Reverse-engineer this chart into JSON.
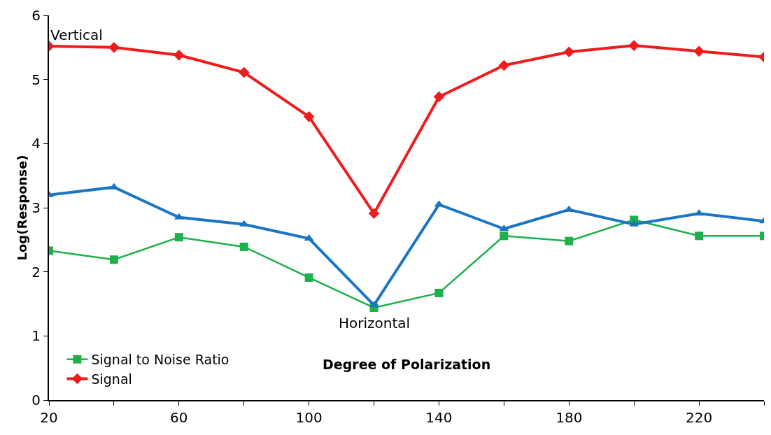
{
  "chart_data": {
    "type": "line",
    "xlabel": "Degree of Polarization",
    "ylabel": "Log(Response)",
    "x": [
      20,
      40,
      60,
      80,
      100,
      120,
      140,
      160,
      180,
      200,
      220,
      240
    ],
    "xlim": [
      20,
      240
    ],
    "xticks": [
      20,
      {
        "value": 40,
        "label": null
      },
      60,
      {
        "value": 80,
        "label": null
      },
      100,
      {
        "value": 120,
        "label": null
      },
      140,
      {
        "value": 160,
        "label": null
      },
      180,
      {
        "value": 200,
        "label": null
      },
      220,
      {
        "value": 240,
        "label": null
      }
    ],
    "ylim": [
      0,
      6
    ],
    "yticks": [
      0,
      1,
      2,
      3,
      4,
      5,
      6
    ],
    "legend": "bottom left",
    "series": [
      {
        "name": "Signal to Noise Ratio",
        "color": "#1db04b",
        "marker": "square",
        "values": [
          2.33,
          2.19,
          2.54,
          2.39,
          1.91,
          1.44,
          1.67,
          2.56,
          2.48,
          2.81,
          2.56,
          2.56
        ]
      },
      {
        "name": "Signal",
        "color": "#ee1c1c",
        "marker": "diamond",
        "values": [
          5.52,
          5.5,
          5.38,
          5.11,
          4.42,
          2.91,
          4.73,
          5.22,
          5.43,
          5.53,
          5.44,
          5.35
        ]
      },
      {
        "color": "#1a75c4",
        "marker": "triangle",
        "values": [
          3.2,
          3.32,
          2.85,
          2.74,
          2.52,
          1.48,
          3.05,
          2.67,
          2.97,
          2.74,
          2.91,
          2.79
        ]
      }
    ],
    "annotations": [
      {
        "text": "Vertical",
        "x": 20,
        "y": 5.52
      },
      {
        "text": "Horizontal",
        "x": 120,
        "y": 1.44
      }
    ]
  }
}
